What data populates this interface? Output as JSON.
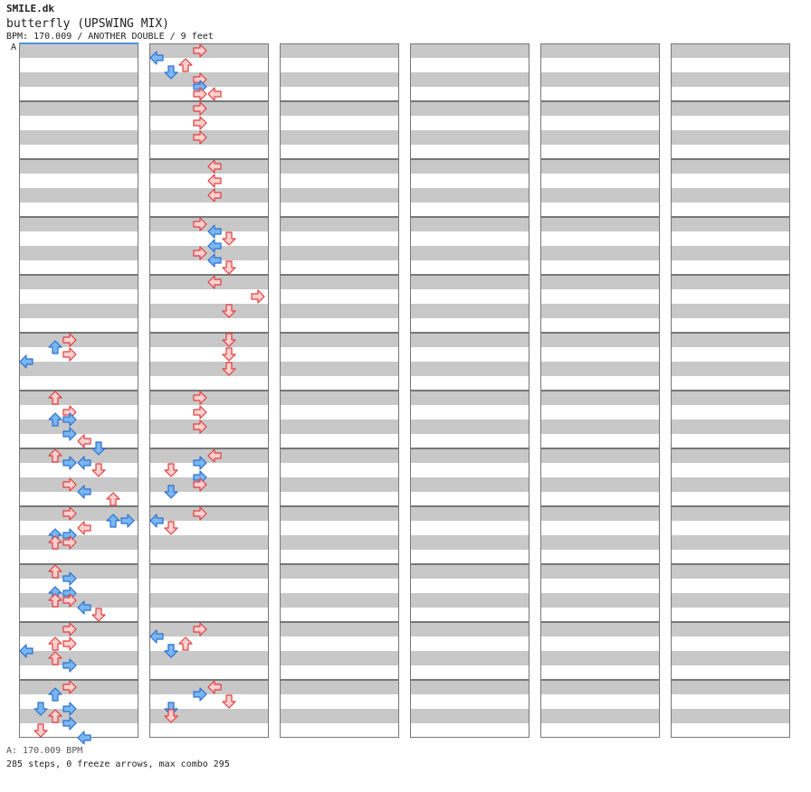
{
  "header": {
    "site": "SMILE.dk",
    "title": "butterfly (UPSWING MIX)",
    "meta": "BPM: 170.009 / ANOTHER DOUBLE / 9 feet"
  },
  "bpm_marker": "A",
  "footer": {
    "bpm_line": "A: 170.009 BPM",
    "steps_line": "285 steps, 0 freeze arrows, max combo 295"
  },
  "legend_colors": {
    "stripe": "#c8c8c8",
    "red_arrow_fill": "#ffd0d0",
    "red_arrow_stroke": "#e03c3c",
    "blue_arrow_fill": "#7ab6f0",
    "blue_arrow_stroke": "#2a6fd0"
  },
  "chart_data": {
    "type": "step chart",
    "columns": 6,
    "measures_per_column": 12,
    "lanes": [
      "L",
      "D",
      "U",
      "R",
      "L",
      "D",
      "U",
      "R"
    ],
    "beats_per_measure": 8,
    "notes": [
      {
        "m": 5,
        "b": 0,
        "l": 4
      },
      {
        "m": 5,
        "b": 1,
        "l": 3
      },
      {
        "m": 5,
        "b": 2,
        "l": 4
      },
      {
        "m": 5,
        "b": 3,
        "l": 1
      },
      {
        "m": 6,
        "b": 0,
        "l": 3
      },
      {
        "m": 6,
        "b": 2,
        "l": 4
      },
      {
        "m": 6,
        "b": 3,
        "l": 3
      },
      {
        "m": 6,
        "b": 3,
        "l": 4
      },
      {
        "m": 6,
        "b": 5,
        "l": 4
      },
      {
        "m": 6,
        "b": 6,
        "l": 5
      },
      {
        "m": 6,
        "b": 7,
        "l": 6
      },
      {
        "m": 7,
        "b": 0,
        "l": 3
      },
      {
        "m": 7,
        "b": 1,
        "l": 4
      },
      {
        "m": 7,
        "b": 1,
        "l": 5
      },
      {
        "m": 7,
        "b": 2,
        "l": 6
      },
      {
        "m": 7,
        "b": 4,
        "l": 4
      },
      {
        "m": 7,
        "b": 5,
        "l": 5
      },
      {
        "m": 7,
        "b": 6,
        "l": 7
      },
      {
        "m": 8,
        "b": 0,
        "l": 4
      },
      {
        "m": 8,
        "b": 1,
        "l": 7
      },
      {
        "m": 8,
        "b": 1,
        "l": 8
      },
      {
        "m": 8,
        "b": 2,
        "l": 5
      },
      {
        "m": 8,
        "b": 3,
        "l": 4
      },
      {
        "m": 8,
        "b": 3,
        "l": 3
      },
      {
        "m": 8,
        "b": 4,
        "l": 3
      },
      {
        "m": 8,
        "b": 4,
        "l": 4
      },
      {
        "m": 9,
        "b": 0,
        "l": 3
      },
      {
        "m": 9,
        "b": 1,
        "l": 4
      },
      {
        "m": 9,
        "b": 3,
        "l": 3
      },
      {
        "m": 9,
        "b": 3,
        "l": 4
      },
      {
        "m": 9,
        "b": 4,
        "l": 3
      },
      {
        "m": 9,
        "b": 4,
        "l": 4
      },
      {
        "m": 9,
        "b": 5,
        "l": 5
      },
      {
        "m": 9,
        "b": 6,
        "l": 6
      },
      {
        "m": 10,
        "b": 0,
        "l": 4
      },
      {
        "m": 10,
        "b": 2,
        "l": 3
      },
      {
        "m": 10,
        "b": 2,
        "l": 4
      },
      {
        "m": 10,
        "b": 3,
        "l": 1
      },
      {
        "m": 10,
        "b": 4,
        "l": 3
      },
      {
        "m": 10,
        "b": 5,
        "l": 4
      },
      {
        "m": 11,
        "b": 0,
        "l": 4
      },
      {
        "m": 11,
        "b": 1,
        "l": 3
      },
      {
        "m": 11,
        "b": 3,
        "l": 2
      },
      {
        "m": 11,
        "b": 3,
        "l": 4
      },
      {
        "m": 11,
        "b": 4,
        "l": 3
      },
      {
        "m": 11,
        "b": 5,
        "l": 4
      },
      {
        "m": 11,
        "b": 6,
        "l": 2
      },
      {
        "m": 11,
        "b": 7,
        "l": 5
      },
      {
        "m": 0,
        "b": 0,
        "l": 4
      },
      {
        "m": 0,
        "b": 1,
        "l": 1
      },
      {
        "m": 0,
        "b": 2,
        "l": 3
      },
      {
        "m": 0,
        "b": 3,
        "l": 2
      },
      {
        "m": 0,
        "b": 4,
        "l": 4
      },
      {
        "m": 0,
        "b": 5,
        "l": 4
      },
      {
        "m": 0,
        "b": 6,
        "l": 4
      },
      {
        "m": 0,
        "b": 6,
        "l": 5
      },
      {
        "m": 1,
        "b": 0,
        "l": 4
      },
      {
        "m": 1,
        "b": 2,
        "l": 4
      },
      {
        "m": 1,
        "b": 4,
        "l": 4
      },
      {
        "m": 2,
        "b": 0,
        "l": 5
      },
      {
        "m": 2,
        "b": 2,
        "l": 5
      },
      {
        "m": 2,
        "b": 4,
        "l": 5
      },
      {
        "m": 3,
        "b": 0,
        "l": 4
      },
      {
        "m": 3,
        "b": 1,
        "l": 5
      },
      {
        "m": 3,
        "b": 2,
        "l": 6
      },
      {
        "m": 3,
        "b": 3,
        "l": 5
      },
      {
        "m": 3,
        "b": 4,
        "l": 4
      },
      {
        "m": 3,
        "b": 5,
        "l": 5
      },
      {
        "m": 3,
        "b": 6,
        "l": 6
      },
      {
        "m": 4,
        "b": 0,
        "l": 5
      },
      {
        "m": 4,
        "b": 2,
        "l": 8
      },
      {
        "m": 4,
        "b": 4,
        "l": 6
      },
      {
        "m": 5,
        "b": 0,
        "l": 6
      },
      {
        "m": 5,
        "b": 2,
        "l": 6
      },
      {
        "m": 5,
        "b": 4,
        "l": 6
      },
      {
        "m": 6,
        "b": 0,
        "l": 4
      },
      {
        "m": 6,
        "b": 2,
        "l": 4
      },
      {
        "m": 6,
        "b": 4,
        "l": 4
      },
      {
        "m": 7,
        "b": 0,
        "l": 5
      },
      {
        "m": 7,
        "b": 1,
        "l": 4
      },
      {
        "m": 7,
        "b": 2,
        "l": 2
      },
      {
        "m": 7,
        "b": 3,
        "l": 4
      },
      {
        "m": 7,
        "b": 4,
        "l": 4
      },
      {
        "m": 7,
        "b": 5,
        "l": 2
      },
      {
        "m": 8,
        "b": 0,
        "l": 4
      },
      {
        "m": 8,
        "b": 1,
        "l": 1
      },
      {
        "m": 8,
        "b": 2,
        "l": 2
      },
      {
        "m": 10,
        "b": 0,
        "l": 4
      },
      {
        "m": 10,
        "b": 1,
        "l": 1
      },
      {
        "m": 10,
        "b": 2,
        "l": 3
      },
      {
        "m": 10,
        "b": 3,
        "l": 2
      },
      {
        "m": 10,
        "b": 3,
        "l": 2
      },
      {
        "m": 11,
        "b": 0,
        "l": 5
      },
      {
        "m": 11,
        "b": 1,
        "l": 4
      },
      {
        "m": 11,
        "b": 2,
        "l": 6
      },
      {
        "m": 11,
        "b": 3,
        "l": 2
      },
      {
        "m": 11,
        "b": 4,
        "l": 2
      }
    ]
  }
}
